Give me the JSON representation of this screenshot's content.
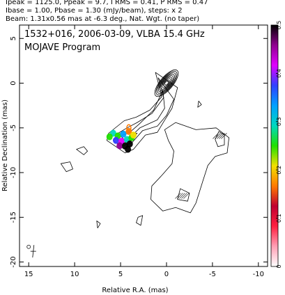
{
  "header": {
    "line1": "Ipeak = 1125.0, Ppeak = 9.7, I RMS = 0.41, P RMS = 0.47",
    "line2": "Ibase = 1.00, Pbase = 1.30 (mJy/beam), steps: x 2",
    "line3": "Beam: 1.31x0.56 mas at -6.3 deg., Nat. Wgt. (no taper)"
  },
  "chart_data": {
    "type": "contour",
    "title": "1532+016, 2006-03-09, VLBA 15.4 GHz",
    "subtitle": "MOJAVE Program",
    "xlabel": "Relative R.A. (mas)",
    "ylabel": "Relative Declination (mas)",
    "xlim": [
      16,
      -11
    ],
    "ylim": [
      -20.5,
      6.5
    ],
    "x_ticks": [
      15,
      10,
      5,
      0,
      -5,
      -10
    ],
    "y_ticks": [
      5,
      0,
      -5,
      -10,
      -15,
      -20
    ],
    "core": {
      "x": 0,
      "y": 0,
      "contour_levels": 9
    },
    "beam": {
      "major_mas": 1.31,
      "minor_mas": 0.56,
      "pa_deg": -6.3,
      "x": 14.5,
      "y": -18.8
    },
    "colorbar": {
      "ticks": [
        0,
        0.1,
        0.2,
        0.3,
        0.4,
        0.5
      ],
      "range": [
        0,
        0.5
      ],
      "colors": [
        "#ffffff",
        "#ff9fb4",
        "#ff2040",
        "#c00030",
        "#ff7a00",
        "#f2e000",
        "#20e000",
        "#00d8c0",
        "#00a0ff",
        "#3040ff",
        "#e000ff",
        "#900090",
        "#000000"
      ]
    },
    "polarization_region": {
      "x_range": [
        3.5,
        6.5
      ],
      "y_range": [
        -7.8,
        -5.2
      ],
      "peak_x": 4.2,
      "peak_y": -7.4
    },
    "grid": false
  }
}
